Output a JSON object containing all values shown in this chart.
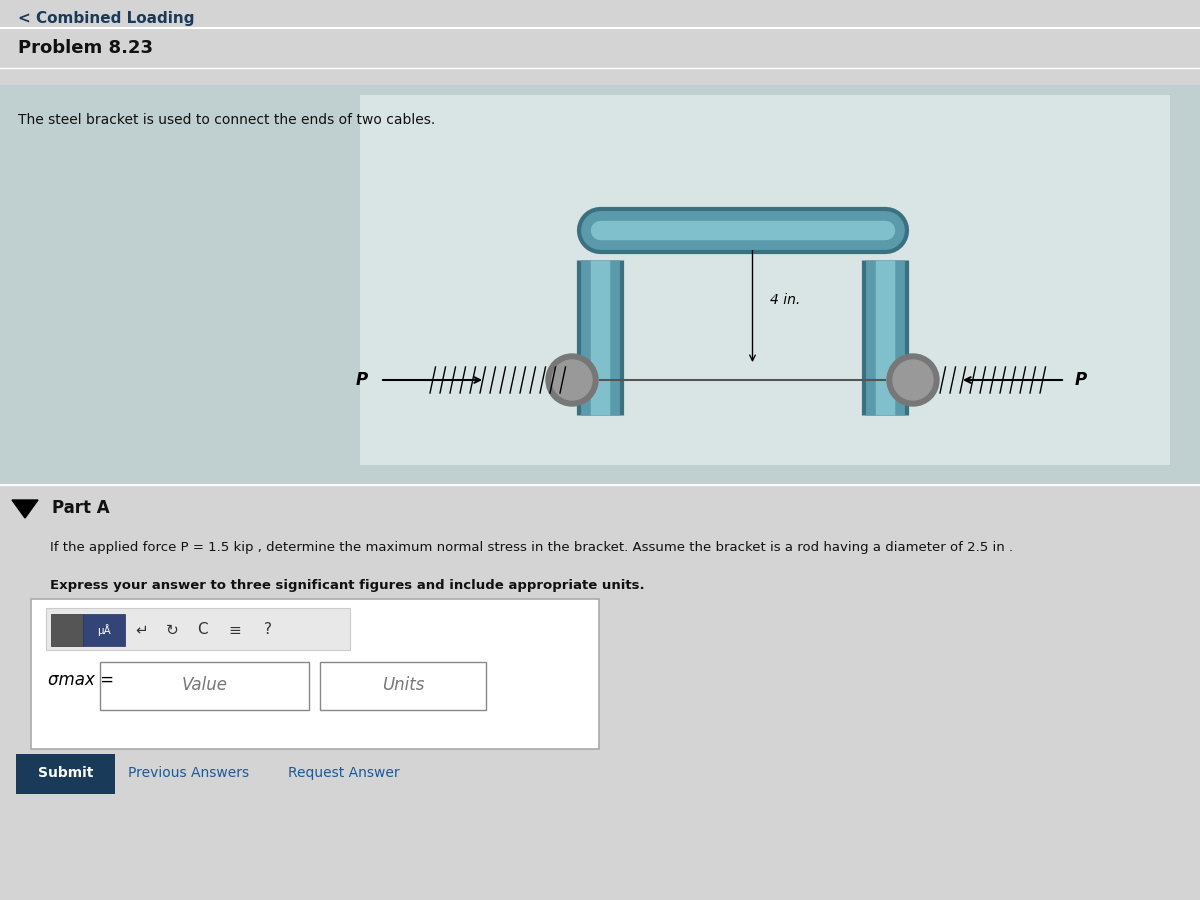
{
  "bg_color": "#d4d4d4",
  "panel_bg": "#c0d0d0",
  "image_bg": "#dce8e8",
  "bracket_color": "#5a9aaa",
  "bracket_dark": "#3a7080",
  "bracket_highlight": "#80c0cc",
  "text_color_dark": "#1a3a5a",
  "text_color_black": "#111111",
  "header_text": "< Combined Loading",
  "problem_text": "Problem 8.23",
  "description_text": "The steel bracket is used to connect the ends of two cables.",
  "dim_label": "4 in.",
  "part_a_text": "Part A",
  "question_line1": "If the applied force P = 1.5 kip , determine the maximum normal stress in the bracket. Assume the bracket is a rod having a diameter of 2.5 in .",
  "instruction_text": "Express your answer to three significant figures and include appropriate units.",
  "sigma_label": "σmax =",
  "value_placeholder": "Value",
  "units_placeholder": "Units",
  "submit_text": "Submit",
  "prev_text": "Previous Answers",
  "request_text": "Request Answer",
  "submit_color": "#1a3a5a",
  "link_color": "#1a5a9a"
}
